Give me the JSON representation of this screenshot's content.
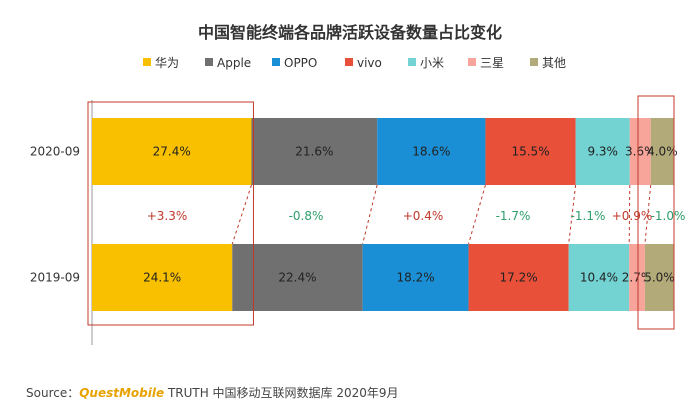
{
  "chart_data": {
    "type": "bar",
    "stacked": true,
    "orientation": "horizontal",
    "title": "中国智能终端各品牌活跃设备数量占比变化",
    "categories": [
      "2020-09",
      "2019-09"
    ],
    "series": [
      {
        "name": "华为",
        "color": "#f9c000",
        "values": [
          27.4,
          24.1
        ],
        "labels": [
          "27.4%",
          "24.1%"
        ]
      },
      {
        "name": "Apple",
        "color": "#707070",
        "values": [
          21.6,
          22.4
        ],
        "labels": [
          "21.6%",
          "22.4%"
        ]
      },
      {
        "name": "OPPO",
        "color": "#1b8fd6",
        "values": [
          18.6,
          18.2
        ],
        "labels": [
          "18.6%",
          "18.2%"
        ]
      },
      {
        "name": "vivo",
        "color": "#e8503a",
        "values": [
          15.5,
          17.2
        ],
        "labels": [
          "15.5%",
          "17.2%"
        ]
      },
      {
        "name": "小米",
        "color": "#73d2d2",
        "values": [
          9.3,
          10.4
        ],
        "labels": [
          "9.3%",
          "10.4%"
        ]
      },
      {
        "name": "三星",
        "color": "#f7a49a",
        "values": [
          3.6,
          2.7
        ],
        "labels": [
          "3.6%",
          "2.7%"
        ]
      },
      {
        "name": "其他",
        "color": "#b3aa7a",
        "values": [
          4.0,
          5.0
        ],
        "labels": [
          "4.0%",
          "5.0%"
        ]
      }
    ],
    "changes": [
      {
        "label": "+3.3%",
        "color": "#c0392b"
      },
      {
        "label": "-0.8%",
        "color": "#2e9e6b"
      },
      {
        "label": "+0.4%",
        "color": "#c0392b"
      },
      {
        "label": "-1.7%",
        "color": "#2e9e6b"
      },
      {
        "label": "-1.1%",
        "color": "#2e9e6b"
      },
      {
        "label": "+0.9%",
        "color": "#c0392b"
      },
      {
        "label": "-1.0%",
        "color": "#2e9e6b"
      }
    ],
    "legend_position": "top",
    "grid": false
  },
  "source": {
    "prefix": "Source：",
    "brand": "QuestMobile",
    "rest": " TRUTH 中国移动互联网数据库 2020年9月"
  }
}
